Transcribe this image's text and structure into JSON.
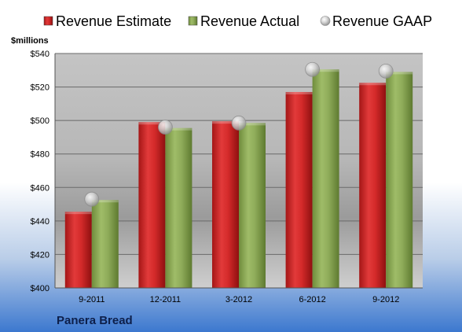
{
  "chart_data": {
    "type": "bar",
    "title": "",
    "company": "Panera Bread",
    "unit_label": "$millions",
    "xlabel": "",
    "ylabel": "",
    "categories": [
      "9-2011",
      "12-2011",
      "3-2012",
      "6-2012",
      "9-2012"
    ],
    "series": [
      {
        "name": "Revenue Estimate",
        "kind": "bar",
        "color": "#d42a2a",
        "values": [
          445.5,
          499,
          499.5,
          517,
          522.5
        ]
      },
      {
        "name": "Revenue Actual",
        "kind": "bar",
        "color": "#8fac5a",
        "values": [
          452.5,
          495.5,
          498.5,
          530.5,
          529
        ]
      },
      {
        "name": "Revenue GAAP",
        "kind": "marker",
        "color": "#b8b8b8",
        "values": [
          453,
          496,
          498.5,
          530.5,
          529.5
        ]
      }
    ],
    "ylim": [
      400,
      540
    ],
    "yticks": [
      "$400",
      "$420",
      "$440",
      "$460",
      "$480",
      "$500",
      "$520",
      "$540"
    ],
    "legend_position": "top",
    "grid": true
  }
}
